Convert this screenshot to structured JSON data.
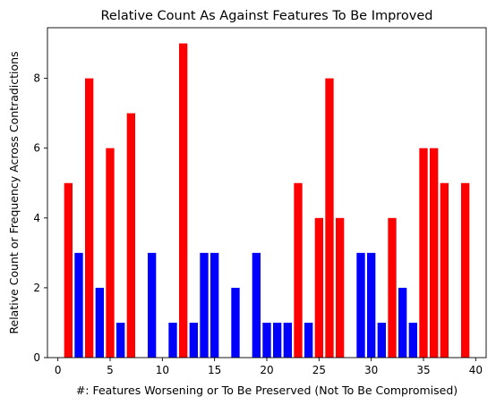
{
  "chart_data": {
    "type": "bar",
    "title": "Relative Count As Against Features To Be Improved",
    "xlabel": "#: Features Worsening or To Be Preserved (Not To Be Compromised)",
    "ylabel": "Relative Count or Frequency Across Contradictions",
    "xlim": [
      -1,
      41
    ],
    "ylim": [
      0,
      9.45
    ],
    "xticks": [
      0,
      5,
      10,
      15,
      20,
      25,
      30,
      35,
      40
    ],
    "yticks": [
      0,
      2,
      4,
      6,
      8
    ],
    "grid": false,
    "colors": {
      "red": "#ff0000",
      "blue": "#0000ff"
    },
    "bars": [
      {
        "x": 1,
        "value": 5,
        "color": "red"
      },
      {
        "x": 2,
        "value": 3,
        "color": "blue"
      },
      {
        "x": 3,
        "value": 8,
        "color": "red"
      },
      {
        "x": 4,
        "value": 2,
        "color": "blue"
      },
      {
        "x": 5,
        "value": 6,
        "color": "red"
      },
      {
        "x": 6,
        "value": 1,
        "color": "blue"
      },
      {
        "x": 7,
        "value": 7,
        "color": "red"
      },
      {
        "x": 9,
        "value": 3,
        "color": "blue"
      },
      {
        "x": 11,
        "value": 1,
        "color": "blue"
      },
      {
        "x": 12,
        "value": 9,
        "color": "red"
      },
      {
        "x": 13,
        "value": 1,
        "color": "blue"
      },
      {
        "x": 14,
        "value": 3,
        "color": "blue"
      },
      {
        "x": 15,
        "value": 3,
        "color": "blue"
      },
      {
        "x": 17,
        "value": 2,
        "color": "blue"
      },
      {
        "x": 19,
        "value": 3,
        "color": "blue"
      },
      {
        "x": 20,
        "value": 1,
        "color": "blue"
      },
      {
        "x": 21,
        "value": 1,
        "color": "blue"
      },
      {
        "x": 22,
        "value": 1,
        "color": "blue"
      },
      {
        "x": 23,
        "value": 5,
        "color": "red"
      },
      {
        "x": 24,
        "value": 1,
        "color": "blue"
      },
      {
        "x": 25,
        "value": 4,
        "color": "red"
      },
      {
        "x": 26,
        "value": 8,
        "color": "red"
      },
      {
        "x": 27,
        "value": 4,
        "color": "red"
      },
      {
        "x": 29,
        "value": 3,
        "color": "blue"
      },
      {
        "x": 30,
        "value": 3,
        "color": "blue"
      },
      {
        "x": 31,
        "value": 1,
        "color": "blue"
      },
      {
        "x": 32,
        "value": 4,
        "color": "red"
      },
      {
        "x": 33,
        "value": 2,
        "color": "blue"
      },
      {
        "x": 34,
        "value": 1,
        "color": "blue"
      },
      {
        "x": 35,
        "value": 6,
        "color": "red"
      },
      {
        "x": 36,
        "value": 6,
        "color": "red"
      },
      {
        "x": 37,
        "value": 5,
        "color": "red"
      },
      {
        "x": 39,
        "value": 5,
        "color": "red"
      }
    ]
  }
}
